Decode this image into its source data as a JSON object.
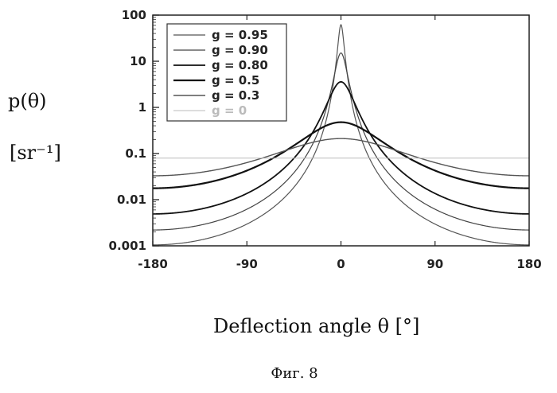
{
  "chart_data": {
    "type": "line",
    "ylabel": "p(θ)",
    "yunit": "[sr⁻¹]",
    "xlabel": "Deflection angle θ  [°]",
    "caption": "Фиг. 8",
    "xlim": [
      -180,
      180
    ],
    "ylim": [
      0.001,
      100
    ],
    "yscale": "log",
    "x_ticks": [
      -180,
      -90,
      0,
      90,
      180
    ],
    "x_tick_labels": [
      "-180",
      "-90",
      "0",
      "90",
      "180"
    ],
    "y_ticks": [
      0.001,
      0.01,
      0.1,
      1,
      10,
      100
    ],
    "y_tick_labels": [
      "0.001",
      "0.01",
      "0.1",
      "1",
      "10",
      "100"
    ],
    "grid": false,
    "legend_position": "top-left",
    "series": [
      {
        "name": "g = 0.95",
        "g": 0.95,
        "color": "#555555",
        "width": 1.2
      },
      {
        "name": "g = 0.90",
        "g": 0.9,
        "color": "#444444",
        "width": 1.2
      },
      {
        "name": "g = 0.80",
        "g": 0.8,
        "color": "#111111",
        "width": 1.8
      },
      {
        "name": "g = 0.5",
        "g": 0.5,
        "color": "#111111",
        "width": 2.2
      },
      {
        "name": "g = 0.3",
        "g": 0.3,
        "color": "#555555",
        "width": 1.4
      },
      {
        "name": "g = 0",
        "g": 0,
        "color": "#bbbbbb",
        "width": 1.0
      }
    ]
  }
}
